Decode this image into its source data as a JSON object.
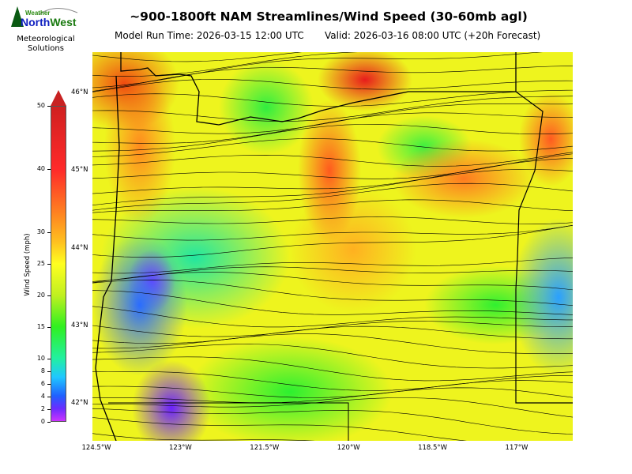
{
  "header": {
    "title": "~900-1800ft NAM Streamlines/Wind Speed (30-60mb agl)",
    "model_run": "Model Run Time: 2026-03-15 12:00 UTC",
    "valid": "Valid: 2026-03-16 08:00 UTC  (+20h Forecast)"
  },
  "logo": {
    "brand_top": "Weather",
    "brand_main": "NorthWest",
    "tagline_1": "Meteorological",
    "tagline_2": "Solutions"
  },
  "colorbar": {
    "label": "Wind Speed (mph)",
    "range": [
      0,
      50
    ],
    "extend": "max",
    "ticks": [
      0,
      2,
      4,
      6,
      8,
      10,
      15,
      20,
      25,
      30,
      40,
      50
    ],
    "colors": [
      "#cc33ff",
      "#2060ff",
      "#20c8ff",
      "#22f0a0",
      "#30f020",
      "#ffff20",
      "#ff8a20",
      "#ff2a2a",
      "#d02020"
    ]
  },
  "map": {
    "lat_labels": [
      "46°N",
      "45°N",
      "44°N",
      "43°N",
      "42°N"
    ],
    "lon_labels": [
      "124.5°W",
      "123°W",
      "121.5°W",
      "120°W",
      "118.5°W",
      "117°W"
    ]
  }
}
